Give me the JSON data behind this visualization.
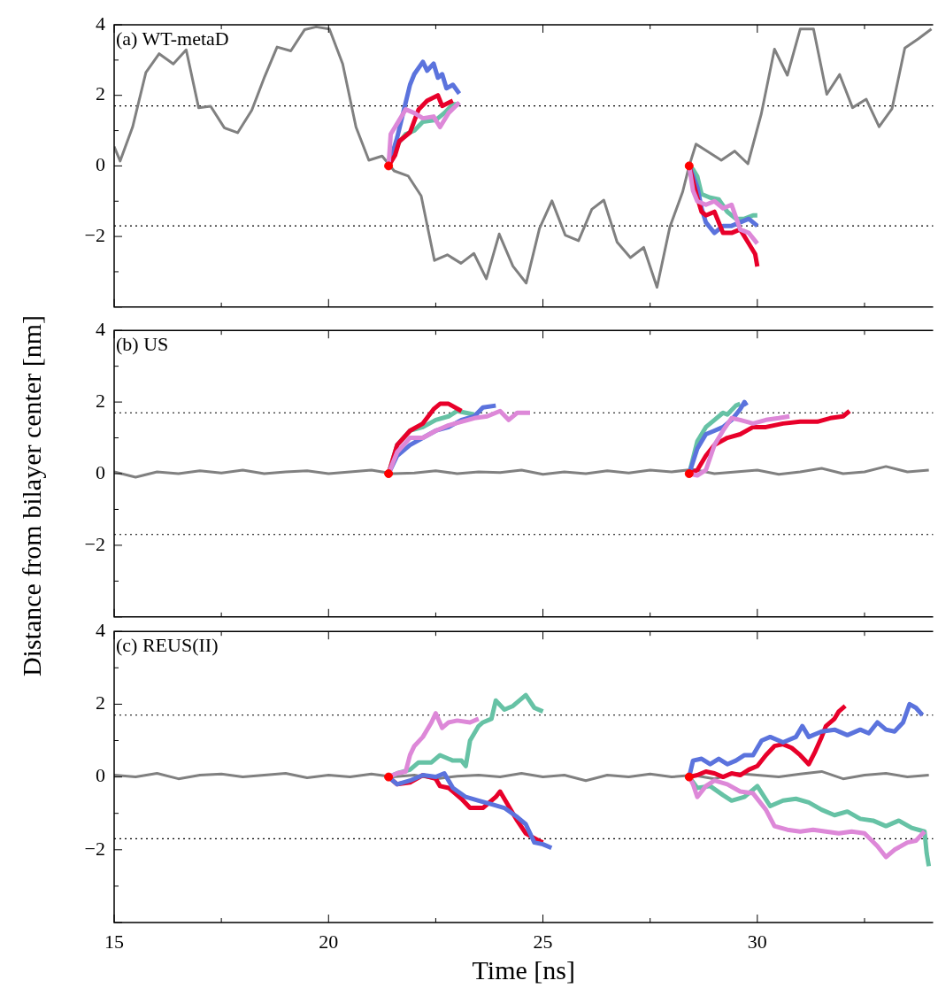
{
  "chart_data": [
    {
      "type": "line",
      "title": "(a) WT-metaD",
      "xlim": [
        15,
        34.1
      ],
      "ylim": [
        -4,
        4
      ],
      "xticks": [
        15,
        {
          "value": 17.5,
          "label": null
        },
        20,
        {
          "value": 22.5,
          "label": null
        },
        25,
        {
          "value": 27.5,
          "label": null
        },
        30,
        {
          "value": 32.5,
          "label": null
        }
      ],
      "yticks": [
        4,
        {
          "value": 3,
          "label": null
        },
        2,
        {
          "value": 1,
          "label": null
        },
        0,
        {
          "value": -1,
          "label": null
        },
        {
          "value": -2,
          "label": "−2"
        },
        {
          "value": -3,
          "label": null
        },
        {
          "value": -4,
          "label": null
        }
      ],
      "tick_labels": "y",
      "ref_lines": [
        {
          "axis": "y",
          "value": 1.7,
          "color": "#000000",
          "line_style": "dotted"
        },
        {
          "axis": "y",
          "value": -1.7,
          "color": "#000000",
          "line_style": "dotted"
        }
      ],
      "series": [
        {
          "color": "#808080",
          "x": [
            15.0,
            15.14,
            15.43,
            15.74,
            16.05,
            16.38,
            16.68,
            16.97,
            17.25,
            17.57,
            17.88,
            18.21,
            18.51,
            18.8,
            19.12,
            19.44,
            19.71,
            20.02,
            20.33,
            20.64,
            20.94,
            21.25,
            21.53,
            21.86,
            22.16,
            22.47,
            22.77,
            23.09,
            23.39,
            23.68,
            23.98,
            24.3,
            24.61,
            24.92,
            25.21,
            25.52,
            25.83,
            26.14,
            26.42,
            26.73,
            27.04,
            27.35,
            27.66,
            27.96,
            28.26,
            28.41,
            28.57,
            29.16,
            29.47,
            29.78,
            30.09,
            30.4,
            30.7,
            31.0,
            31.31,
            31.62,
            31.92,
            32.22,
            32.54,
            32.84,
            33.14,
            33.44,
            33.75,
            34.06
          ],
          "values": [
            0.55,
            0.14,
            1.1,
            2.65,
            3.18,
            2.89,
            3.29,
            1.65,
            1.69,
            1.08,
            0.94,
            1.58,
            2.53,
            3.37,
            3.26,
            3.86,
            3.94,
            3.88,
            2.89,
            1.1,
            0.16,
            0.28,
            -0.14,
            -0.29,
            -0.85,
            -2.68,
            -2.52,
            -2.76,
            -2.48,
            -3.2,
            -1.93,
            -2.84,
            -3.32,
            -1.77,
            -0.99,
            -1.96,
            -2.12,
            -1.23,
            -0.97,
            -2.16,
            -2.6,
            -2.31,
            -3.44,
            -1.73,
            -0.73,
            0,
            0.62,
            0.16,
            0.42,
            0.06,
            1.46,
            3.31,
            2.57,
            3.88,
            3.88,
            2.03,
            2.59,
            1.65,
            1.89,
            1.11,
            1.62,
            3.34,
            3.6,
            3.88
          ]
        },
        {
          "color": "#66c2a5",
          "x": [
            21.4,
            21.6,
            21.8,
            22.0,
            22.2,
            22.5,
            22.7,
            22.9,
            23.05
          ],
          "values": [
            0,
            0.6,
            0.9,
            1.0,
            1.25,
            1.3,
            1.5,
            1.75,
            1.75
          ]
        },
        {
          "color": "#5b73dd",
          "x": [
            21.4,
            21.5,
            21.6,
            21.8,
            21.9,
            22.0,
            22.2,
            22.3,
            22.45,
            22.55,
            22.65,
            22.75,
            22.9,
            23.05
          ],
          "values": [
            0,
            0.4,
            0.8,
            1.8,
            2.3,
            2.6,
            2.95,
            2.7,
            2.9,
            2.5,
            2.6,
            2.2,
            2.3,
            2.05
          ]
        },
        {
          "color": "#e8002a",
          "x": [
            21.4,
            21.55,
            21.65,
            21.9,
            22.1,
            22.3,
            22.55,
            22.65,
            22.9
          ],
          "values": [
            0,
            0.3,
            0.7,
            0.95,
            1.6,
            1.85,
            2.0,
            1.7,
            1.85
          ]
        },
        {
          "color": "#dd88d8",
          "x": [
            21.4,
            21.45,
            21.6,
            21.8,
            22.0,
            22.2,
            22.45,
            22.6,
            22.8,
            23.05
          ],
          "values": [
            0,
            0.9,
            1.2,
            1.6,
            1.5,
            1.35,
            1.4,
            1.1,
            1.5,
            1.8
          ]
        },
        {
          "color": "#66c2a5",
          "x": [
            28.41,
            28.5,
            28.6,
            28.7,
            28.9,
            29.1,
            29.3,
            29.5,
            29.7,
            29.9,
            30.0
          ],
          "values": [
            0,
            -0.1,
            -0.3,
            -0.8,
            -0.9,
            -0.95,
            -1.3,
            -1.5,
            -1.5,
            -1.4,
            -1.4
          ]
        },
        {
          "color": "#5b73dd",
          "x": [
            28.41,
            28.6,
            28.7,
            28.8,
            29.0,
            29.2,
            29.4,
            29.6,
            29.8,
            30.0
          ],
          "values": [
            0,
            -0.6,
            -1.2,
            -1.6,
            -1.9,
            -1.7,
            -1.7,
            -1.6,
            -1.5,
            -1.7
          ]
        },
        {
          "color": "#e8002a",
          "x": [
            28.41,
            28.6,
            28.7,
            28.8,
            29.0,
            29.2,
            29.4,
            29.6,
            29.8,
            29.95,
            30.0
          ],
          "values": [
            0,
            -0.9,
            -1.3,
            -1.4,
            -1.3,
            -1.9,
            -1.9,
            -1.8,
            -2.2,
            -2.5,
            -2.85
          ]
        },
        {
          "color": "#dd88d8",
          "x": [
            28.41,
            28.5,
            28.6,
            28.8,
            29.0,
            29.2,
            29.4,
            29.6,
            29.8,
            30.0
          ],
          "values": [
            0,
            -0.7,
            -1.0,
            -1.1,
            -1.0,
            -1.2,
            -1.1,
            -1.8,
            -1.9,
            -2.2
          ]
        },
        {
          "type": "scatter",
          "color": "#ff0000",
          "x": [
            21.4,
            28.41
          ],
          "values": [
            0,
            0
          ]
        }
      ]
    },
    {
      "type": "line",
      "title": "(b) US",
      "ylabel": "Distance from bilayer center [nm]",
      "xlim": [
        15,
        34.1
      ],
      "ylim": [
        -4,
        4
      ],
      "xticks": [
        15,
        {
          "value": 17.5,
          "label": null
        },
        20,
        {
          "value": 22.5,
          "label": null
        },
        25,
        {
          "value": 27.5,
          "label": null
        },
        30,
        {
          "value": 32.5,
          "label": null
        }
      ],
      "yticks": [
        4,
        {
          "value": 3,
          "label": null
        },
        2,
        {
          "value": 1,
          "label": null
        },
        0,
        {
          "value": -1,
          "label": null
        },
        {
          "value": -2,
          "label": "−2"
        },
        {
          "value": -3,
          "label": null
        },
        {
          "value": -4,
          "label": null
        }
      ],
      "tick_labels": "y",
      "ref_lines": [
        {
          "axis": "y",
          "value": 1.7,
          "color": "#000000",
          "line_style": "dotted"
        },
        {
          "axis": "y",
          "value": -1.7,
          "color": "#000000",
          "line_style": "dotted"
        }
      ],
      "series": [
        {
          "color": "#808080",
          "x": [
            15,
            15.5,
            16,
            16.5,
            17,
            17.5,
            18,
            18.5,
            19,
            19.5,
            20,
            20.5,
            21,
            21.5,
            22,
            22.5,
            23,
            23.5,
            24,
            24.5,
            25,
            25.5,
            26,
            26.5,
            27,
            27.5,
            28,
            28.5,
            29,
            29.5,
            30,
            30.5,
            31,
            31.5,
            32,
            32.5,
            33,
            33.5,
            34
          ],
          "values": [
            0.05,
            -0.1,
            0.05,
            0.0,
            0.08,
            0.02,
            0.1,
            0.0,
            0.05,
            0.08,
            0.0,
            0.05,
            0.1,
            0.0,
            0.02,
            0.08,
            0.0,
            0.05,
            0.03,
            0.1,
            -0.02,
            0.05,
            0.0,
            0.08,
            0.02,
            0.1,
            0.05,
            0.12,
            0.0,
            0.05,
            0.1,
            -0.02,
            0.05,
            0.15,
            0.0,
            0.05,
            0.2,
            0.05,
            0.1
          ]
        },
        {
          "color": "#66c2a5",
          "x": [
            21.4,
            21.6,
            21.9,
            22.2,
            22.5,
            22.8,
            23.0,
            23.2,
            23.4
          ],
          "values": [
            0,
            0.8,
            1.2,
            1.3,
            1.5,
            1.6,
            1.75,
            1.7,
            1.65
          ]
        },
        {
          "color": "#e8002a",
          "x": [
            21.4,
            21.6,
            21.9,
            22.2,
            22.45,
            22.6,
            22.8,
            23.1
          ],
          "values": [
            0,
            0.8,
            1.2,
            1.4,
            1.8,
            1.95,
            1.95,
            1.75
          ]
        },
        {
          "color": "#5b73dd",
          "x": [
            21.4,
            21.6,
            21.9,
            22.2,
            22.5,
            22.8,
            23.1,
            23.4,
            23.6,
            23.9
          ],
          "values": [
            0,
            0.5,
            0.8,
            1.0,
            1.2,
            1.3,
            1.5,
            1.6,
            1.85,
            1.9
          ]
        },
        {
          "color": "#dd88d8",
          "x": [
            21.4,
            21.6,
            21.9,
            22.2,
            22.5,
            22.8,
            23.1,
            23.4,
            23.7,
            24.0,
            24.2,
            24.4,
            24.7
          ],
          "values": [
            0,
            0.6,
            1.0,
            1.0,
            1.2,
            1.35,
            1.45,
            1.55,
            1.6,
            1.75,
            1.5,
            1.7,
            1.7
          ]
        },
        {
          "color": "#66c2a5",
          "x": [
            28.41,
            28.6,
            28.8,
            29.0,
            29.2,
            29.3,
            29.5,
            29.6
          ],
          "values": [
            0,
            0.9,
            1.3,
            1.5,
            1.7,
            1.65,
            1.9,
            1.95
          ]
        },
        {
          "color": "#5b73dd",
          "x": [
            28.41,
            28.6,
            28.8,
            29.0,
            29.2,
            29.4,
            29.6,
            29.7,
            29.75
          ],
          "values": [
            0,
            0.7,
            1.1,
            1.2,
            1.3,
            1.5,
            1.8,
            2.0,
            1.9
          ]
        },
        {
          "color": "#e8002a",
          "x": [
            28.41,
            28.6,
            28.8,
            29.0,
            29.3,
            29.6,
            29.9,
            30.2,
            30.6,
            31.0,
            31.4,
            31.7,
            32.0,
            32.15
          ],
          "values": [
            0,
            0.1,
            0.5,
            0.8,
            1.0,
            1.1,
            1.3,
            1.3,
            1.4,
            1.45,
            1.45,
            1.55,
            1.6,
            1.75
          ]
        },
        {
          "color": "#dd88d8",
          "x": [
            28.41,
            28.6,
            28.8,
            29.0,
            29.2,
            29.4,
            29.6,
            29.9,
            30.2,
            30.5,
            30.75
          ],
          "values": [
            0,
            -0.05,
            0.1,
            0.8,
            1.2,
            1.55,
            1.5,
            1.4,
            1.5,
            1.55,
            1.6
          ]
        },
        {
          "type": "scatter",
          "color": "#ff0000",
          "x": [
            21.4,
            28.41
          ],
          "values": [
            0,
            0
          ]
        }
      ]
    },
    {
      "type": "line",
      "title": "(c) REUS(II)",
      "xlabel": "Time [ns]",
      "xlim": [
        15,
        34.1
      ],
      "ylim": [
        -4,
        4
      ],
      "xticks": [
        15,
        {
          "value": 17.5,
          "label": null
        },
        20,
        {
          "value": 22.5,
          "label": null
        },
        25,
        {
          "value": 27.5,
          "label": null
        },
        30,
        {
          "value": 32.5,
          "label": null
        }
      ],
      "yticks": [
        4,
        {
          "value": 3,
          "label": null
        },
        2,
        {
          "value": 1,
          "label": null
        },
        0,
        {
          "value": -1,
          "label": null
        },
        {
          "value": -2,
          "label": "−2"
        },
        {
          "value": -3,
          "label": null
        },
        {
          "value": -4,
          "label": null
        }
      ],
      "ref_lines": [
        {
          "axis": "y",
          "value": 1.7,
          "color": "#000000",
          "line_style": "dotted"
        },
        {
          "axis": "y",
          "value": -1.7,
          "color": "#000000",
          "line_style": "dotted"
        }
      ],
      "series": [
        {
          "color": "#808080",
          "x": [
            15,
            15.5,
            16,
            16.5,
            17,
            17.5,
            18,
            18.5,
            19,
            19.5,
            20,
            20.5,
            21,
            21.5,
            22,
            22.5,
            23,
            23.5,
            24,
            24.5,
            25,
            25.5,
            26,
            26.5,
            27,
            27.5,
            28,
            28.5,
            29,
            29.5,
            30,
            30.5,
            31,
            31.5,
            32,
            32.5,
            33,
            33.5,
            34
          ],
          "values": [
            0.05,
            0.0,
            0.1,
            -0.05,
            0.05,
            0.08,
            0.0,
            0.05,
            0.1,
            -0.02,
            0.05,
            0.0,
            0.08,
            0.0,
            0.05,
            -0.05,
            0.02,
            0.05,
            0.0,
            0.1,
            0.0,
            0.05,
            -0.1,
            0.05,
            0.0,
            0.08,
            0.0,
            0.05,
            -0.05,
            0.1,
            0.05,
            0.0,
            0.08,
            0.15,
            -0.05,
            0.05,
            0.1,
            0.0,
            0.05
          ]
        },
        {
          "color": "#66c2a5",
          "x": [
            21.4,
            21.6,
            21.9,
            22.1,
            22.4,
            22.6,
            22.9,
            23.1,
            23.2,
            23.3,
            23.5,
            23.6,
            23.8,
            23.9,
            24.1,
            24.3,
            24.6,
            24.8,
            25.0
          ],
          "values": [
            0,
            0.1,
            0.2,
            0.4,
            0.4,
            0.6,
            0.45,
            0.45,
            0.3,
            1.0,
            1.4,
            1.5,
            1.6,
            2.1,
            1.85,
            1.95,
            2.25,
            1.9,
            1.8
          ]
        },
        {
          "color": "#dd88d8",
          "x": [
            21.4,
            21.6,
            21.8,
            21.9,
            22.0,
            22.2,
            22.4,
            22.5,
            22.65,
            22.8,
            23.0,
            23.3,
            23.5
          ],
          "values": [
            0,
            0.1,
            0.15,
            0.6,
            0.85,
            1.1,
            1.5,
            1.75,
            1.35,
            1.5,
            1.55,
            1.5,
            1.6
          ]
        },
        {
          "color": "#e8002a",
          "x": [
            21.4,
            21.6,
            21.9,
            22.2,
            22.5,
            22.6,
            22.8,
            23.1,
            23.3,
            23.6,
            23.9,
            24.0,
            24.2,
            24.4,
            24.6,
            24.9,
            25.0
          ],
          "values": [
            0,
            -0.2,
            -0.15,
            0.05,
            -0.05,
            -0.25,
            -0.3,
            -0.6,
            -0.85,
            -0.85,
            -0.55,
            -0.4,
            -0.8,
            -1.2,
            -1.55,
            -1.75,
            -1.8
          ]
        },
        {
          "color": "#5b73dd",
          "x": [
            21.4,
            21.6,
            21.9,
            22.2,
            22.5,
            22.7,
            22.9,
            23.2,
            23.5,
            23.8,
            24.1,
            24.4,
            24.6,
            24.8,
            25.0,
            25.2
          ],
          "values": [
            0,
            -0.2,
            -0.1,
            0.05,
            0.0,
            0.1,
            -0.3,
            -0.55,
            -0.65,
            -0.75,
            -0.85,
            -1.1,
            -1.3,
            -1.8,
            -1.85,
            -1.95
          ]
        },
        {
          "color": "#66c2a5",
          "x": [
            28.41,
            28.6,
            28.9,
            29.2,
            29.4,
            29.7,
            30.0,
            30.3,
            30.6,
            30.9,
            31.2,
            31.5,
            31.8,
            32.1,
            32.4,
            32.7,
            33.0,
            33.3,
            33.6,
            33.9,
            33.95,
            34.0
          ],
          "values": [
            0,
            -0.3,
            -0.25,
            -0.5,
            -0.65,
            -0.55,
            -0.25,
            -0.8,
            -0.65,
            -0.6,
            -0.7,
            -0.9,
            -1.05,
            -0.95,
            -1.15,
            -1.2,
            -1.35,
            -1.2,
            -1.4,
            -1.5,
            -2.1,
            -2.45
          ]
        },
        {
          "color": "#dd88d8",
          "x": [
            28.41,
            28.5,
            28.6,
            28.8,
            29.0,
            29.3,
            29.6,
            29.9,
            30.2,
            30.4,
            30.7,
            31.0,
            31.3,
            31.6,
            31.9,
            32.2,
            32.5,
            32.8,
            33.0,
            33.2,
            33.5,
            33.7,
            33.9
          ],
          "values": [
            0,
            -0.2,
            -0.55,
            -0.25,
            -0.1,
            -0.2,
            -0.4,
            -0.45,
            -0.9,
            -1.35,
            -1.45,
            -1.5,
            -1.45,
            -1.5,
            -1.55,
            -1.5,
            -1.55,
            -1.9,
            -2.2,
            -2.0,
            -1.8,
            -1.75,
            -1.5
          ]
        },
        {
          "color": "#e8002a",
          "x": [
            28.41,
            28.6,
            28.8,
            29.0,
            29.2,
            29.4,
            29.6,
            29.8,
            30.0,
            30.2,
            30.4,
            30.6,
            30.8,
            31.0,
            31.2,
            31.35,
            31.5,
            31.6,
            31.8,
            31.9,
            32.05
          ],
          "values": [
            0,
            0.05,
            0.15,
            0.1,
            0.0,
            0.1,
            0.05,
            0.2,
            0.3,
            0.6,
            0.85,
            0.9,
            0.8,
            0.6,
            0.35,
            0.7,
            1.1,
            1.4,
            1.6,
            1.8,
            1.95
          ]
        },
        {
          "color": "#5b73dd",
          "x": [
            28.41,
            28.5,
            28.7,
            28.9,
            29.1,
            29.3,
            29.5,
            29.7,
            29.9,
            30.1,
            30.3,
            30.6,
            30.9,
            31.05,
            31.2,
            31.5,
            31.8,
            32.1,
            32.4,
            32.6,
            32.8,
            33.0,
            33.2,
            33.4,
            33.55,
            33.7,
            33.85
          ],
          "values": [
            0,
            0.45,
            0.5,
            0.35,
            0.5,
            0.35,
            0.45,
            0.6,
            0.6,
            1.0,
            1.1,
            0.95,
            1.1,
            1.4,
            1.1,
            1.25,
            1.3,
            1.15,
            1.3,
            1.2,
            1.5,
            1.3,
            1.25,
            1.5,
            2.0,
            1.9,
            1.7
          ]
        },
        {
          "type": "scatter",
          "color": "#ff0000",
          "x": [
            21.4,
            28.41
          ],
          "values": [
            0,
            0
          ]
        }
      ]
    }
  ]
}
